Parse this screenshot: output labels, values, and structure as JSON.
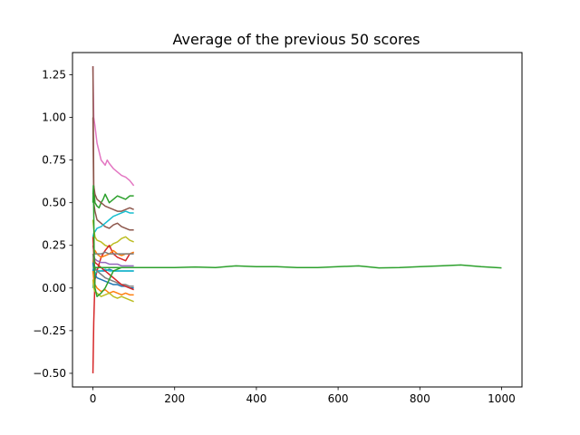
{
  "chart_data": {
    "type": "line",
    "title": "Average of the previous 50 scores",
    "xlabel": "",
    "ylabel": "",
    "xlim": [
      -50,
      1050
    ],
    "ylim": [
      -0.58,
      1.38
    ],
    "grid": false,
    "legend": "none",
    "xticks": [
      0,
      200,
      400,
      600,
      800,
      1000
    ],
    "xtick_labels": [
      "0",
      "200",
      "400",
      "600",
      "800",
      "1000"
    ],
    "yticks": [
      -0.5,
      -0.25,
      0.0,
      0.25,
      0.5,
      0.75,
      1.0,
      1.25
    ],
    "ytick_labels": [
      "−0.50",
      "−0.25",
      "0.00",
      "0.25",
      "0.50",
      "0.75",
      "1.00",
      "1.25"
    ],
    "series": [
      {
        "color": "#e377c2",
        "x": [
          0,
          2,
          5,
          10,
          15,
          20,
          30,
          35,
          40,
          50,
          60,
          70,
          80,
          90,
          100
        ],
        "y": [
          1.3,
          1.0,
          0.95,
          0.85,
          0.8,
          0.75,
          0.72,
          0.75,
          0.73,
          0.7,
          0.68,
          0.66,
          0.65,
          0.63,
          0.6
        ]
      },
      {
        "color": "#2ca02c",
        "x": [
          0,
          2,
          5,
          10,
          15,
          20,
          25,
          30,
          40,
          50,
          60,
          70,
          80,
          90,
          100
        ],
        "y": [
          0.55,
          0.6,
          0.5,
          0.48,
          0.47,
          0.5,
          0.52,
          0.55,
          0.5,
          0.52,
          0.54,
          0.53,
          0.52,
          0.54,
          0.54
        ]
      },
      {
        "color": "#8c564b",
        "x": [
          0,
          2,
          5,
          10,
          20,
          30,
          40,
          50,
          60,
          70,
          80,
          90,
          100
        ],
        "y": [
          1.3,
          0.6,
          0.55,
          0.52,
          0.5,
          0.48,
          0.47,
          0.46,
          0.45,
          0.45,
          0.46,
          0.47,
          0.46
        ]
      },
      {
        "color": "#8c564b",
        "x": [
          0,
          2,
          5,
          10,
          20,
          30,
          40,
          50,
          60,
          70,
          80,
          90,
          100
        ],
        "y": [
          1.0,
          0.5,
          0.45,
          0.4,
          0.38,
          0.36,
          0.35,
          0.37,
          0.38,
          0.36,
          0.35,
          0.34,
          0.34
        ]
      },
      {
        "color": "#17becf",
        "x": [
          0,
          2,
          5,
          10,
          20,
          30,
          40,
          50,
          60,
          70,
          80,
          90,
          100
        ],
        "y": [
          0.3,
          0.32,
          0.33,
          0.35,
          0.36,
          0.38,
          0.4,
          0.42,
          0.43,
          0.44,
          0.45,
          0.44,
          0.44
        ]
      },
      {
        "color": "#bcbd22",
        "x": [
          0,
          2,
          5,
          10,
          20,
          30,
          40,
          50,
          60,
          70,
          80,
          90,
          100
        ],
        "y": [
          0.4,
          0.35,
          0.3,
          0.28,
          0.27,
          0.25,
          0.24,
          0.26,
          0.27,
          0.29,
          0.3,
          0.28,
          0.27
        ]
      },
      {
        "color": "#d62728",
        "x": [
          0,
          2,
          5,
          10,
          20,
          30,
          40,
          50,
          60,
          70,
          80,
          90,
          100
        ],
        "y": [
          -0.5,
          -0.2,
          0.05,
          0.1,
          0.18,
          0.22,
          0.25,
          0.2,
          0.18,
          0.17,
          0.16,
          0.2,
          0.21
        ]
      },
      {
        "color": "#ff7f0e",
        "x": [
          0,
          2,
          5,
          10,
          20,
          30,
          40,
          50,
          60,
          70,
          80,
          90,
          100
        ],
        "y": [
          0.15,
          0.2,
          0.22,
          0.2,
          0.18,
          0.19,
          0.2,
          0.22,
          0.2,
          0.19,
          0.2,
          0.2,
          0.21
        ]
      },
      {
        "color": "#7f7f7f",
        "x": [
          0,
          2,
          5,
          10,
          20,
          30,
          40,
          50,
          60,
          70,
          80,
          90,
          100
        ],
        "y": [
          0.25,
          0.22,
          0.2,
          0.2,
          0.2,
          0.21,
          0.2,
          0.2,
          0.2,
          0.2,
          0.2,
          0.2,
          0.2
        ]
      },
      {
        "color": "#9467bd",
        "x": [
          0,
          2,
          5,
          10,
          20,
          30,
          40,
          50,
          60,
          70,
          80,
          90,
          100
        ],
        "y": [
          0.2,
          0.18,
          0.17,
          0.16,
          0.15,
          0.15,
          0.14,
          0.14,
          0.14,
          0.13,
          0.13,
          0.13,
          0.13
        ]
      },
      {
        "color": "#1f77b4",
        "x": [
          0,
          2,
          5,
          10,
          20,
          30,
          40,
          50,
          60,
          70,
          80,
          90,
          100
        ],
        "y": [
          0.1,
          0.12,
          0.11,
          0.1,
          0.1,
          0.1,
          0.11,
          0.1,
          0.1,
          0.1,
          0.1,
          0.1,
          0.1
        ]
      },
      {
        "color": "#17becf",
        "x": [
          0,
          2,
          5,
          10,
          20,
          30,
          40,
          50,
          60,
          70,
          80,
          90,
          100
        ],
        "y": [
          0.0,
          0.05,
          0.08,
          0.1,
          0.1,
          0.11,
          0.1,
          0.1,
          0.1,
          0.1,
          0.1,
          0.1,
          0.1
        ]
      },
      {
        "color": "#1f77b4",
        "x": [
          0,
          2,
          5,
          10,
          20,
          30,
          40,
          50,
          60,
          70,
          80,
          90,
          100
        ],
        "y": [
          0.15,
          0.1,
          0.08,
          0.06,
          0.05,
          0.04,
          0.03,
          0.02,
          0.02,
          0.01,
          0.01,
          0.0,
          0.0
        ]
      },
      {
        "color": "#ff7f0e",
        "x": [
          0,
          2,
          5,
          10,
          20,
          30,
          40,
          50,
          60,
          70,
          80,
          90,
          100
        ],
        "y": [
          0.1,
          0.05,
          0.02,
          0.0,
          -0.02,
          -0.01,
          -0.03,
          -0.02,
          -0.03,
          -0.04,
          -0.03,
          -0.04,
          -0.04
        ]
      },
      {
        "color": "#bcbd22",
        "x": [
          0,
          2,
          5,
          10,
          20,
          30,
          40,
          50,
          60,
          70,
          80,
          90,
          100
        ],
        "y": [
          0.05,
          0.0,
          -0.02,
          -0.03,
          -0.05,
          -0.04,
          -0.03,
          -0.05,
          -0.06,
          -0.05,
          -0.06,
          -0.07,
          -0.08
        ]
      },
      {
        "color": "#7f7f7f",
        "x": [
          0,
          2,
          5,
          10,
          20,
          30,
          40,
          50,
          60,
          70,
          80,
          90,
          100
        ],
        "y": [
          0.2,
          0.15,
          0.12,
          0.1,
          0.08,
          0.06,
          0.05,
          0.04,
          0.03,
          0.02,
          0.02,
          0.01,
          0.01
        ]
      },
      {
        "color": "#d62728",
        "x": [
          0,
          2,
          5,
          10,
          20,
          30,
          40,
          50,
          60,
          70,
          80,
          90,
          100
        ],
        "y": [
          0.3,
          0.2,
          0.15,
          0.14,
          0.12,
          0.1,
          0.08,
          0.06,
          0.04,
          0.02,
          0.01,
          0.0,
          -0.01
        ]
      },
      {
        "color": "#2ca02c",
        "x": [
          0,
          1,
          2,
          3,
          4,
          5,
          10,
          20,
          30,
          40,
          50,
          60,
          70,
          80,
          90,
          100
        ],
        "y": [
          0.5,
          0.6,
          0.45,
          0.2,
          0.1,
          0.0,
          -0.05,
          -0.03,
          0.0,
          0.05,
          0.1,
          0.11,
          0.12,
          0.12,
          0.12,
          0.12
        ]
      },
      {
        "color": "#2ca02c",
        "x": [
          0,
          50,
          100,
          150,
          200,
          250,
          300,
          350,
          400,
          450,
          500,
          550,
          600,
          650,
          700,
          750,
          800,
          850,
          900,
          950,
          1000
        ],
        "y": [
          0.12,
          0.12,
          0.12,
          0.12,
          0.12,
          0.123,
          0.12,
          0.13,
          0.125,
          0.125,
          0.12,
          0.12,
          0.125,
          0.13,
          0.118,
          0.12,
          0.125,
          0.13,
          0.135,
          0.125,
          0.118
        ]
      }
    ]
  }
}
